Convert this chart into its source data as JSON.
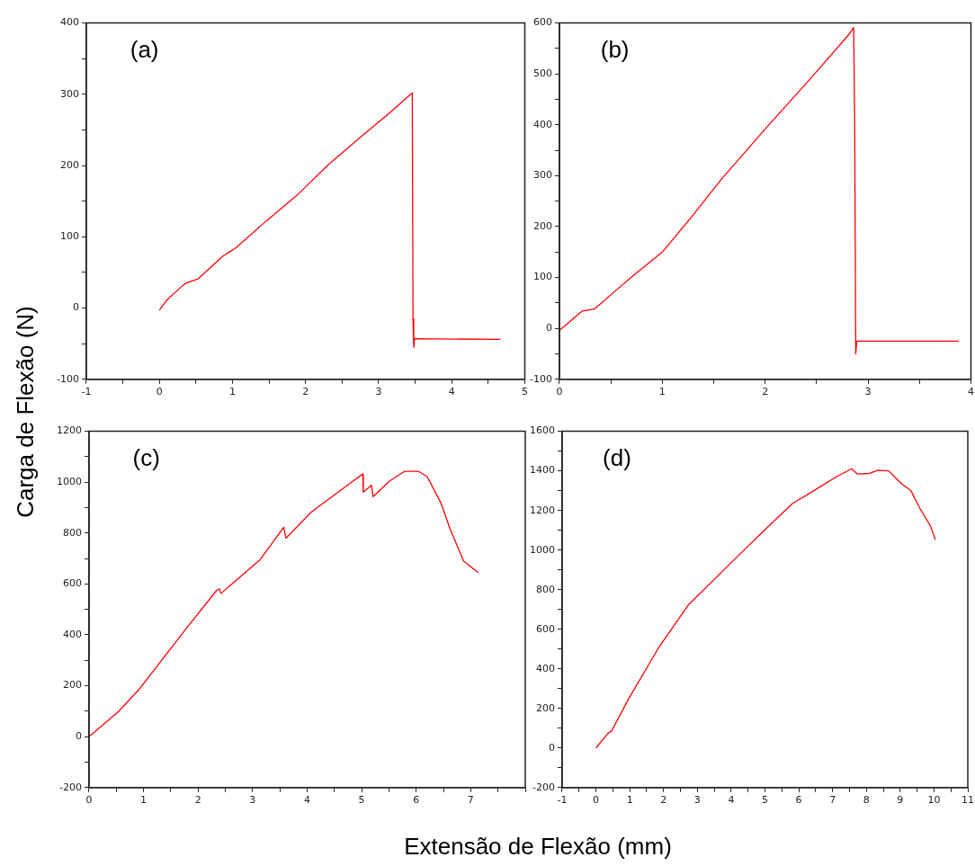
{
  "chart_data": [
    {
      "type": "line",
      "annotations": [
        "(a)"
      ],
      "ylabel": "Carga de Flexão (N)",
      "grid": false,
      "legend": false,
      "marker": "none",
      "line_style": "solid",
      "xlim": [
        -1,
        5
      ],
      "xticks": [
        -1,
        {
          "value": -0.5,
          "label": null
        },
        0,
        {
          "value": 0.5,
          "label": null
        },
        1,
        {
          "value": 1.5,
          "label": null
        },
        2,
        {
          "value": 2.5,
          "label": null
        },
        3,
        {
          "value": 3.5,
          "label": null
        },
        4,
        {
          "value": 4.5,
          "label": null
        },
        5
      ],
      "ylim": [
        -100,
        400
      ],
      "yticks": [
        -100,
        {
          "value": -50,
          "label": null
        },
        0,
        {
          "value": 50,
          "label": null
        },
        100,
        {
          "value": 150,
          "label": null
        },
        200,
        {
          "value": 250,
          "label": null
        },
        300,
        {
          "value": 350,
          "label": null
        },
        400
      ],
      "series": [
        {
          "color": "#ff0000",
          "x": [
            0,
            0.1,
            0.28,
            0.36,
            0.53,
            0.87,
            1.04,
            1.46,
            1.88,
            2.31,
            2.73,
            3.15,
            3.46,
            3.47,
            3.48,
            3.49,
            4.67
          ],
          "values": [
            -3,
            11,
            28,
            35,
            41,
            73,
            84,
            122,
            158,
            201,
            238,
            274,
            302,
            -15,
            -55,
            -43,
            -44
          ]
        }
      ]
    },
    {
      "type": "line",
      "annotations": [
        "(b)"
      ],
      "grid": false,
      "legend": false,
      "marker": "none",
      "line_style": "solid",
      "xlim": [
        0,
        4
      ],
      "xticks": [
        0,
        {
          "value": 0.5,
          "label": null
        },
        1,
        {
          "value": 1.5,
          "label": null
        },
        2,
        {
          "value": 2.5,
          "label": null
        },
        3,
        {
          "value": 3.5,
          "label": null
        },
        4
      ],
      "ylim": [
        -100,
        600
      ],
      "yticks": [
        -100,
        {
          "value": -50,
          "label": null
        },
        0,
        {
          "value": 50,
          "label": null
        },
        100,
        {
          "value": 150,
          "label": null
        },
        200,
        {
          "value": 250,
          "label": null
        },
        300,
        {
          "value": 350,
          "label": null
        },
        400,
        {
          "value": 450,
          "label": null
        },
        500,
        {
          "value": 550,
          "label": null
        },
        600
      ],
      "series": [
        {
          "color": "#ff0000",
          "x": [
            0,
            0.22,
            0.34,
            0.54,
            0.72,
            1.0,
            1.28,
            1.57,
            2.01,
            2.45,
            2.82,
            2.86,
            2.87,
            2.88,
            2.89,
            3.88
          ],
          "values": [
            -4,
            34,
            38,
            73,
            104,
            150,
            218,
            292,
            394,
            493,
            579,
            591,
            400,
            -50,
            -25,
            -25
          ]
        }
      ]
    },
    {
      "type": "line",
      "annotations": [
        "(c)"
      ],
      "xlabel": "Extensão de Flexão (mm)",
      "grid": false,
      "legend": false,
      "marker": "none",
      "line_style": "solid",
      "xlim": [
        0,
        8
      ],
      "xticks": [
        0,
        {
          "value": 0.5,
          "label": null
        },
        1,
        {
          "value": 1.5,
          "label": null
        },
        2,
        {
          "value": 2.5,
          "label": null
        },
        3,
        {
          "value": 3.5,
          "label": null
        },
        4,
        {
          "value": 4.5,
          "label": null
        },
        5,
        {
          "value": 5.5,
          "label": null
        },
        6,
        {
          "value": 6.5,
          "label": null
        },
        7,
        {
          "value": 7.5,
          "label": null
        },
        {
          "value": 8,
          "label": null
        }
      ],
      "ylim": [
        -200,
        1200
      ],
      "yticks": [
        -200,
        {
          "value": -100,
          "label": null
        },
        0,
        {
          "value": 100,
          "label": null
        },
        200,
        {
          "value": 300,
          "label": null
        },
        400,
        {
          "value": 500,
          "label": null
        },
        600,
        {
          "value": 700,
          "label": null
        },
        800,
        {
          "value": 900,
          "label": null
        },
        1000,
        {
          "value": 1100,
          "label": null
        },
        1200
      ],
      "series": [
        {
          "color": "#ff0000",
          "x": [
            0,
            0.54,
            0.93,
            1.76,
            2.34,
            2.39,
            2.42,
            3.14,
            3.57,
            3.61,
            4.08,
            4.8,
            5.02,
            5.03,
            5.18,
            5.21,
            5.51,
            5.79,
            6.04,
            6.2,
            6.45,
            6.62,
            6.87,
            7.14
          ],
          "values": [
            0,
            99,
            189,
            419,
            575,
            581,
            563,
            696,
            823,
            780,
            883,
            998,
            1032,
            961,
            988,
            943,
            1004,
            1043,
            1043,
            1022,
            920,
            817,
            690,
            645
          ]
        }
      ]
    },
    {
      "type": "line",
      "annotations": [
        "(d)"
      ],
      "grid": false,
      "legend": false,
      "marker": "none",
      "line_style": "solid",
      "xlim": [
        -1,
        11
      ],
      "xticks": [
        -1,
        {
          "value": -0.5,
          "label": null
        },
        0,
        {
          "value": 0.5,
          "label": null
        },
        1,
        {
          "value": 1.5,
          "label": null
        },
        2,
        {
          "value": 2.5,
          "label": null
        },
        3,
        {
          "value": 3.5,
          "label": null
        },
        4,
        {
          "value": 4.5,
          "label": null
        },
        5,
        {
          "value": 5.5,
          "label": null
        },
        6,
        {
          "value": 6.5,
          "label": null
        },
        7,
        {
          "value": 7.5,
          "label": null
        },
        8,
        {
          "value": 8.5,
          "label": null
        },
        9,
        {
          "value": 9.5,
          "label": null
        },
        10,
        {
          "value": 10.5,
          "label": null
        },
        11
      ],
      "ylim": [
        -200,
        1600
      ],
      "yticks": [
        -200,
        {
          "value": -100,
          "label": null
        },
        0,
        {
          "value": 100,
          "label": null
        },
        200,
        {
          "value": 300,
          "label": null
        },
        400,
        {
          "value": 500,
          "label": null
        },
        600,
        {
          "value": 700,
          "label": null
        },
        800,
        {
          "value": 900,
          "label": null
        },
        1000,
        {
          "value": 1100,
          "label": null
        },
        1200,
        {
          "value": 1300,
          "label": null
        },
        1400,
        {
          "value": 1500,
          "label": null
        },
        1600
      ],
      "series": [
        {
          "color": "#ff0000",
          "x": [
            0,
            0.37,
            0.46,
            0.98,
            1.86,
            2.74,
            3.88,
            4.93,
            5.81,
            6.51,
            7.12,
            7.56,
            7.74,
            8.09,
            8.35,
            8.66,
            9.01,
            9.32,
            9.58,
            9.89,
            10.04
          ],
          "values": [
            0,
            77,
            85,
            253,
            508,
            724,
            916,
            1092,
            1235,
            1307,
            1371,
            1411,
            1384,
            1387,
            1403,
            1400,
            1339,
            1299,
            1211,
            1124,
            1052
          ]
        }
      ]
    }
  ]
}
